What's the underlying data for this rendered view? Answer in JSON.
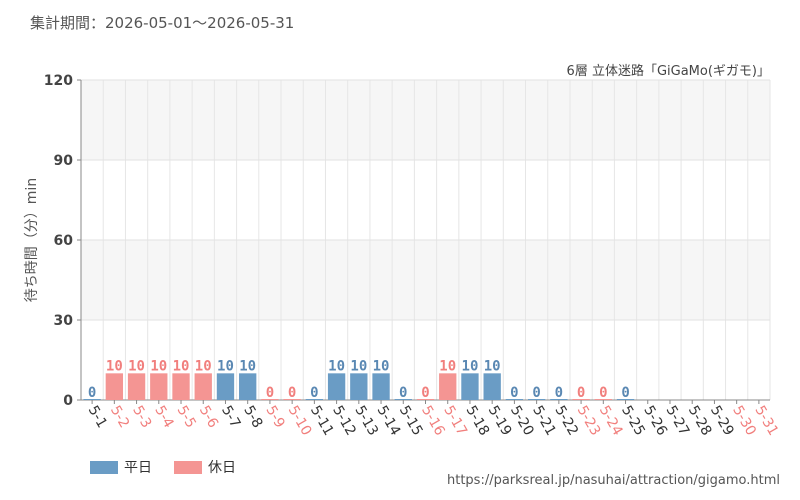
{
  "header": {
    "period": "集計期間：2026-05-01～2026-05-31",
    "subtitle": "6層 立体迷路「GiGaMo(ギガモ)」"
  },
  "legend": {
    "weekday_label": "平日",
    "holiday_label": "休日"
  },
  "footer": {
    "source_url": "https://parksreal.jp/nasuhai/attraction/gigamo.html"
  },
  "colors": {
    "weekday": "#6a9cc5",
    "holiday": "#f49593",
    "weekday_text": "#5a88b3",
    "holiday_text": "#f17f7d"
  },
  "chart_data": {
    "type": "bar",
    "ylabel": "待ち時間（分）min",
    "xlabel": "",
    "ylim": [
      0,
      120
    ],
    "yticks": [
      0,
      30,
      60,
      90,
      120
    ],
    "grid": true,
    "legend_position": "bottom-left",
    "categories": [
      "5-1",
      "5-2",
      "5-3",
      "5-4",
      "5-5",
      "5-6",
      "5-7",
      "5-8",
      "5-9",
      "5-10",
      "5-11",
      "5-12",
      "5-13",
      "5-14",
      "5-15",
      "5-16",
      "5-17",
      "5-18",
      "5-19",
      "5-20",
      "5-21",
      "5-22",
      "5-23",
      "5-24",
      "5-25",
      "5-26",
      "5-27",
      "5-28",
      "5-29",
      "5-30",
      "5-31"
    ],
    "values": [
      0,
      10,
      10,
      10,
      10,
      10,
      10,
      10,
      0,
      0,
      0,
      10,
      10,
      10,
      0,
      0,
      10,
      10,
      10,
      0,
      0,
      0,
      0,
      0,
      0,
      null,
      null,
      null,
      null,
      null,
      null
    ],
    "day_type": [
      "weekday",
      "holiday",
      "holiday",
      "holiday",
      "holiday",
      "holiday",
      "weekday",
      "weekday",
      "holiday",
      "holiday",
      "weekday",
      "weekday",
      "weekday",
      "weekday",
      "weekday",
      "holiday",
      "holiday",
      "weekday",
      "weekday",
      "weekday",
      "weekday",
      "weekday",
      "holiday",
      "holiday",
      "weekday",
      "weekday",
      "weekday",
      "weekday",
      "weekday",
      "holiday",
      "holiday"
    ]
  }
}
